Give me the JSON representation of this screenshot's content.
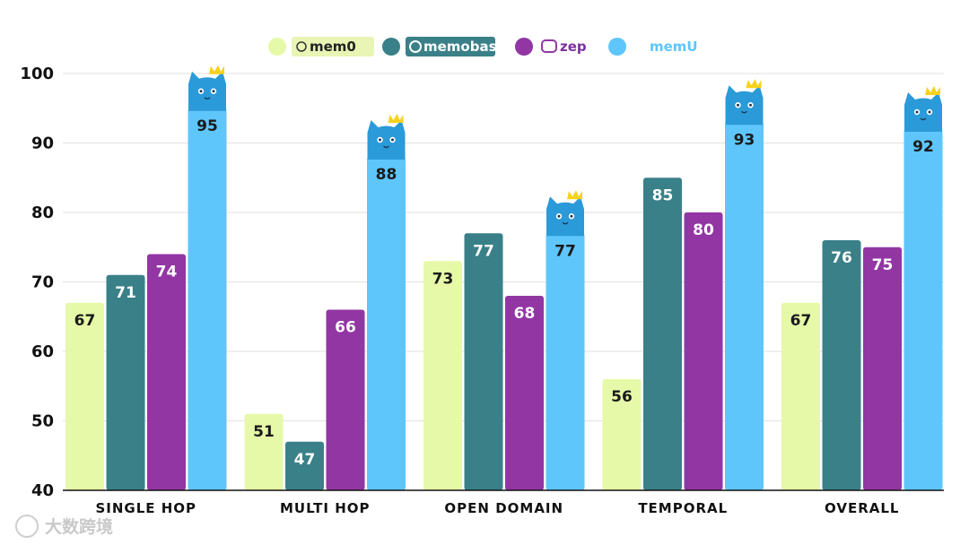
{
  "chart_data": {
    "type": "bar",
    "title": "",
    "xlabel": "",
    "ylabel": "",
    "ylim": [
      40,
      100
    ],
    "yticks": [
      40,
      50,
      60,
      70,
      80,
      90,
      100
    ],
    "grid": true,
    "legend_position": "top-center",
    "categories": [
      "SINGLE HOP",
      "MULTI HOP",
      "OPEN DOMAIN",
      "TEMPORAL",
      "OVERALL"
    ],
    "series": [
      {
        "name": "mem0",
        "color": "#e6f9a8",
        "values": [
          67,
          51,
          73,
          56,
          67
        ]
      },
      {
        "name": "memobase",
        "color": "#3a8088",
        "values": [
          71,
          47,
          77,
          85,
          76
        ]
      },
      {
        "name": "zep",
        "color": "#9236a4",
        "values": [
          74,
          66,
          68,
          80,
          75
        ]
      },
      {
        "name": "memU",
        "color": "#5ec6fb",
        "values": [
          95,
          88,
          77,
          93,
          92
        ]
      }
    ]
  },
  "watermark": "大数跨境",
  "colors": {
    "grid": "#e2e2e2",
    "cat_icon": "#2b9ad8",
    "crown": "#f7d21b"
  }
}
